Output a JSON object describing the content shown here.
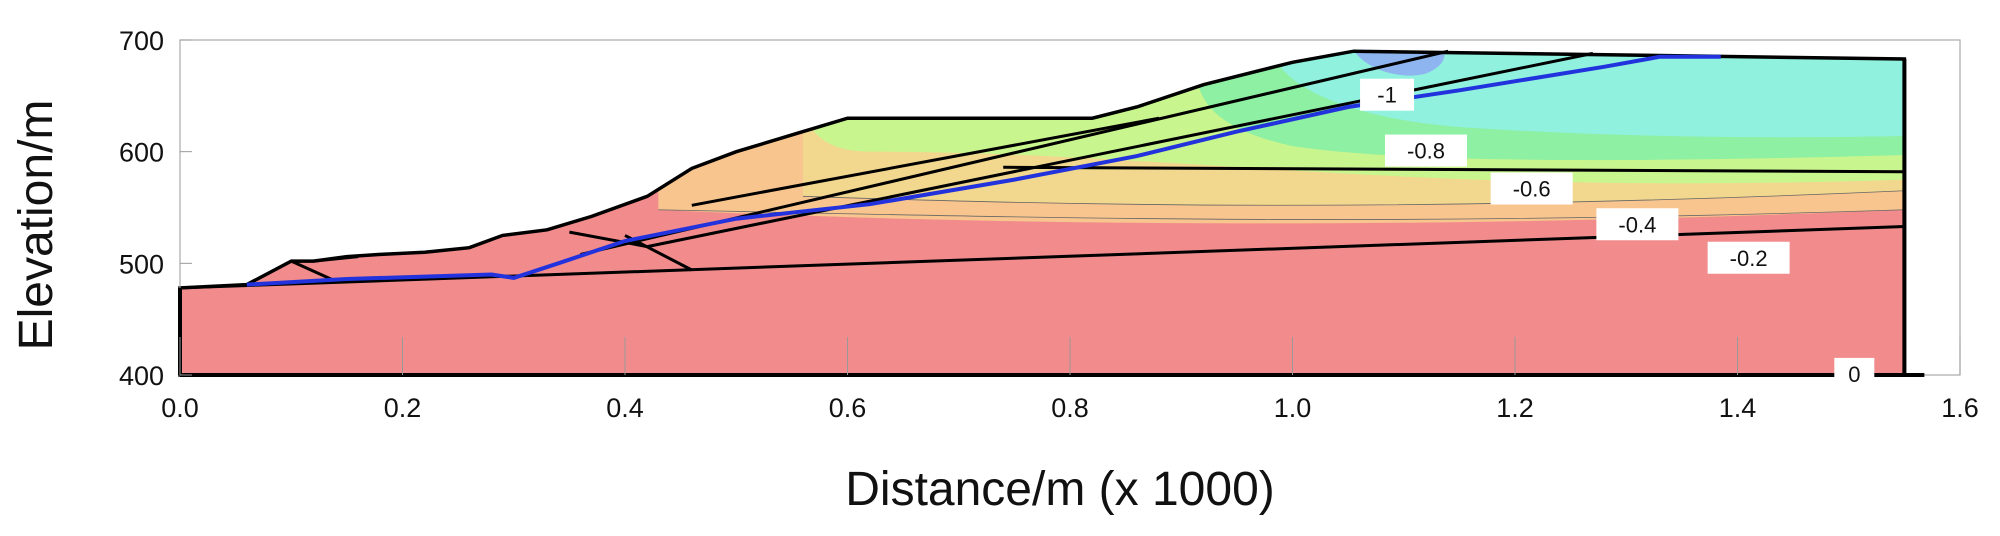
{
  "chart_data": {
    "type": "area",
    "xlabel": "Distance/m (x  1000)",
    "ylabel": "Elevation/m",
    "xlim": [
      0.0,
      1.6
    ],
    "ylim": [
      400,
      700
    ],
    "x_ticks": [
      "0.0",
      "0.2",
      "0.4",
      "0.6",
      "0.8",
      "1.0",
      "1.2",
      "1.4",
      "1.6"
    ],
    "y_ticks": [
      "400",
      "500",
      "600",
      "700"
    ],
    "grid": false,
    "colors": {
      "band_0": "#f28b8b",
      "band_m02": "#f8c58e",
      "band_m04": "#f2d88e",
      "band_m06": "#c9f58e",
      "band_m08": "#8ef0a2",
      "band_m1": "#8ff1de",
      "band_core": "#8eb5f0",
      "slip_surface": "#2233dd",
      "boundary": "#000000"
    },
    "slope_profile": [
      [
        0.0,
        478
      ],
      [
        0.06,
        481
      ],
      [
        0.1,
        502
      ],
      [
        0.12,
        502
      ],
      [
        0.15,
        506
      ],
      [
        0.18,
        508
      ],
      [
        0.22,
        510
      ],
      [
        0.26,
        514
      ],
      [
        0.29,
        525
      ],
      [
        0.33,
        530
      ],
      [
        0.37,
        542
      ],
      [
        0.42,
        560
      ],
      [
        0.46,
        585
      ],
      [
        0.5,
        600
      ],
      [
        0.56,
        618
      ],
      [
        0.6,
        630
      ],
      [
        0.82,
        630
      ],
      [
        0.86,
        640
      ],
      [
        0.92,
        660
      ],
      [
        1.0,
        680
      ],
      [
        1.055,
        690
      ],
      [
        1.55,
        683
      ]
    ],
    "slip_surface": [
      [
        0.06,
        481
      ],
      [
        0.15,
        486
      ],
      [
        0.28,
        490
      ],
      [
        0.3,
        487
      ],
      [
        0.34,
        500
      ],
      [
        0.4,
        520
      ],
      [
        0.5,
        540
      ],
      [
        0.62,
        553
      ],
      [
        0.75,
        575
      ],
      [
        0.86,
        596
      ],
      [
        0.95,
        618
      ],
      [
        1.05,
        640
      ],
      [
        1.15,
        655
      ],
      [
        1.28,
        676
      ],
      [
        1.33,
        685
      ],
      [
        1.385,
        685
      ]
    ],
    "contour_labels": [
      {
        "text": "-1",
        "x": 1.085,
        "y": 651
      },
      {
        "text": "-0.8",
        "x": 1.12,
        "y": 601
      },
      {
        "text": "-0.6",
        "x": 1.215,
        "y": 567
      },
      {
        "text": "-0.4",
        "x": 1.31,
        "y": 535
      },
      {
        "text": "-0.2",
        "x": 1.41,
        "y": 505
      },
      {
        "text": "0",
        "x": 1.505,
        "y": 401
      }
    ]
  }
}
